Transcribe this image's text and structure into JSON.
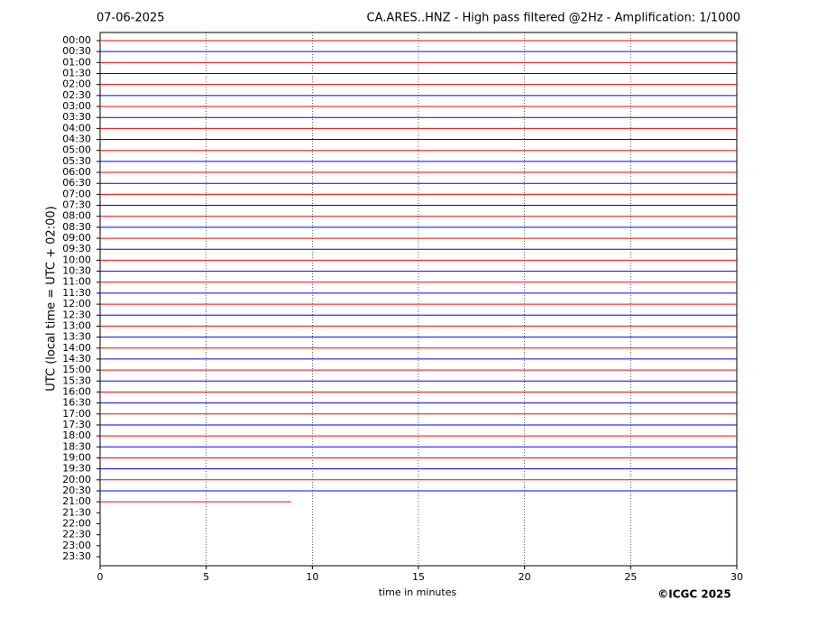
{
  "chart_data": {
    "type": "helicorder",
    "date": "07-06-2025",
    "title": "CA.ARES..HNZ - High pass filtered @2Hz - Amplification: 1/1000",
    "ylabel": "UTC (local time = UTC + 02:00)",
    "xlabel": "time in minutes",
    "credit": "©ICGC 2025",
    "xlim": [
      0,
      30
    ],
    "xticks": [
      0,
      5,
      10,
      15,
      20,
      25,
      30
    ],
    "grid": true,
    "colors": [
      "#ff0000",
      "#0000ff"
    ],
    "categories": [
      "00:00",
      "00:30",
      "01:00",
      "01:30",
      "02:00",
      "02:30",
      "03:00",
      "03:30",
      "04:00",
      "04:30",
      "05:00",
      "05:30",
      "06:00",
      "06:30",
      "07:00",
      "07:30",
      "08:00",
      "08:30",
      "09:00",
      "09:30",
      "10:00",
      "10:30",
      "11:00",
      "11:30",
      "12:00",
      "12:30",
      "13:00",
      "13:30",
      "14:00",
      "14:30",
      "15:00",
      "15:30",
      "16:00",
      "16:30",
      "17:00",
      "17:30",
      "18:00",
      "18:30",
      "19:00",
      "19:30",
      "20:00",
      "20:30",
      "21:00",
      "21:30",
      "22:00",
      "22:30",
      "23:00",
      "23:30"
    ],
    "values": [
      30,
      30,
      30,
      30,
      30,
      30,
      30,
      30,
      30,
      30,
      30,
      30,
      30,
      30,
      30,
      30,
      30,
      30,
      30,
      30,
      30,
      30,
      30,
      30,
      30,
      30,
      30,
      30,
      30,
      30,
      30,
      30,
      30,
      30,
      30,
      30,
      30,
      30,
      30,
      30,
      30,
      30,
      9,
      null,
      null,
      null,
      null,
      null
    ]
  }
}
